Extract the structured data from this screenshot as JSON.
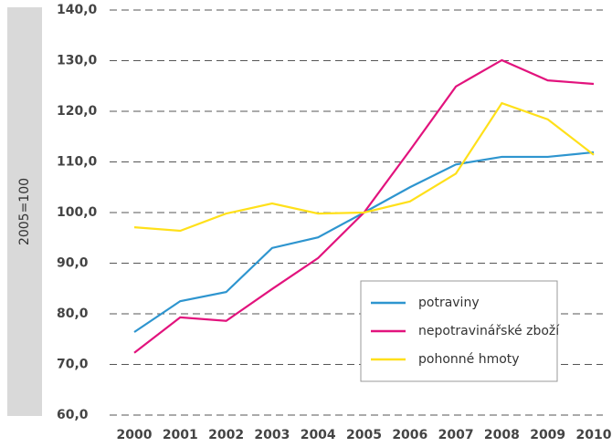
{
  "chart_data": {
    "type": "line",
    "y_axis_label": "2005=100",
    "categories": [
      "2000",
      "2001",
      "2002",
      "2003",
      "2004",
      "2005",
      "2006",
      "2007",
      "2008",
      "2009",
      "2010"
    ],
    "series": [
      {
        "name": "potraviny",
        "color": "#2e95cf",
        "values": [
          76.4,
          82.5,
          84.3,
          93.0,
          95.1,
          100.0,
          105.0,
          109.5,
          111.0,
          111.0,
          111.9
        ]
      },
      {
        "name": "nepotravinářské zboží",
        "color": "#e2137d",
        "values": [
          72.3,
          79.3,
          78.6,
          84.9,
          91.0,
          100.0,
          112.3,
          124.9,
          130.1,
          126.1,
          125.4
        ]
      },
      {
        "name": "pohonné hmoty",
        "color": "#ffe01a",
        "values": [
          97.1,
          96.4,
          99.8,
          101.8,
          99.8,
          100.0,
          102.2,
          107.7,
          121.6,
          118.4,
          111.4
        ]
      }
    ],
    "ylim": [
      60,
      140
    ],
    "yticks": [
      {
        "value": 60,
        "label": "60,0"
      },
      {
        "value": 70,
        "label": "70,0"
      },
      {
        "value": 80,
        "label": "80,0"
      },
      {
        "value": 90,
        "label": "90,0"
      },
      {
        "value": 100,
        "label": "100,0"
      },
      {
        "value": 110,
        "label": "110,0"
      },
      {
        "value": 120,
        "label": "120,0"
      },
      {
        "value": 130,
        "label": "130,0"
      },
      {
        "value": 140,
        "label": "140,0"
      }
    ],
    "grid": true,
    "legend": "lower right"
  }
}
